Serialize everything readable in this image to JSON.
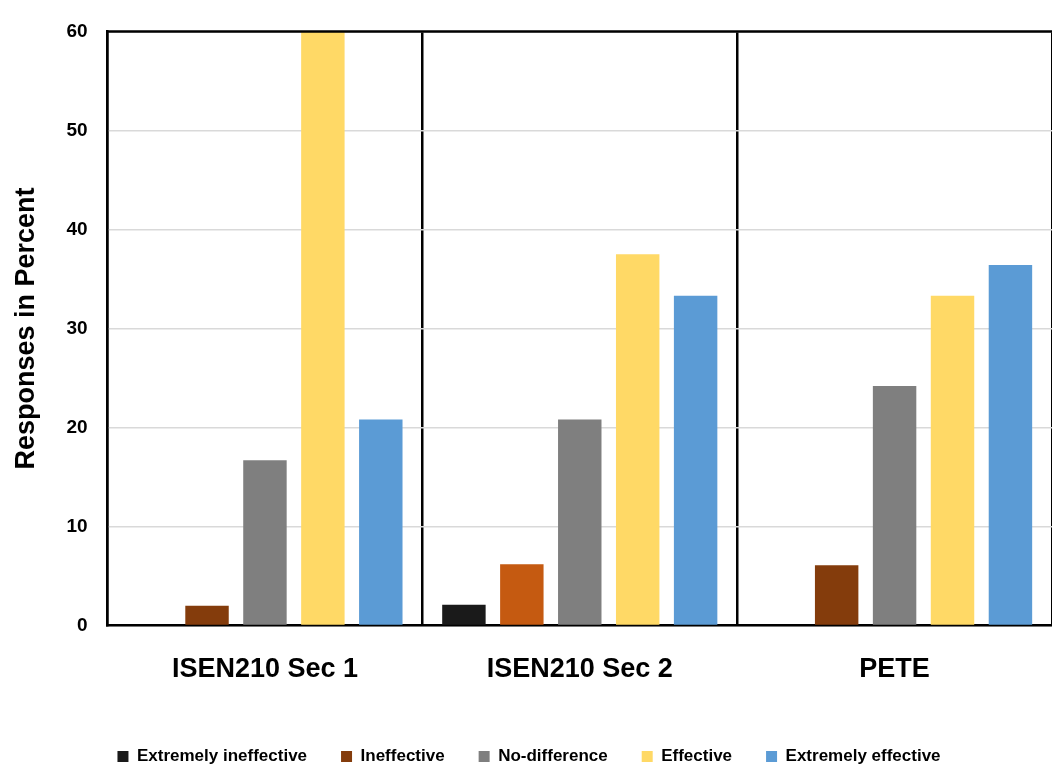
{
  "chart_data": {
    "type": "bar",
    "ylabel": "Responses in Percent",
    "categories": [
      "ISEN210 Sec 1",
      "ISEN210 Sec 2",
      "PETE"
    ],
    "series": [
      {
        "name": "Extremely ineffective",
        "color": "#1a1a1a",
        "values": [
          0,
          2.1,
          0
        ]
      },
      {
        "name": "Ineffective",
        "color": "#843c0c",
        "colors": [
          "#843c0c",
          "#c55a11",
          "#843c0c"
        ],
        "values": [
          2,
          6.2,
          6.1
        ]
      },
      {
        "name": "No-difference",
        "color": "#7f7f7f",
        "values": [
          16.7,
          20.8,
          24.2
        ]
      },
      {
        "name": "Effective",
        "color": "#ffd966",
        "values": [
          60,
          37.5,
          33.3
        ]
      },
      {
        "name": "Extremely effective",
        "color": "#5b9bd5",
        "values": [
          20.8,
          33.3,
          36.4
        ]
      }
    ],
    "ylim": [
      0,
      60
    ],
    "yticks": [
      0,
      10,
      20,
      30,
      40,
      50,
      60
    ],
    "grid": true,
    "legend": "bottom"
  }
}
